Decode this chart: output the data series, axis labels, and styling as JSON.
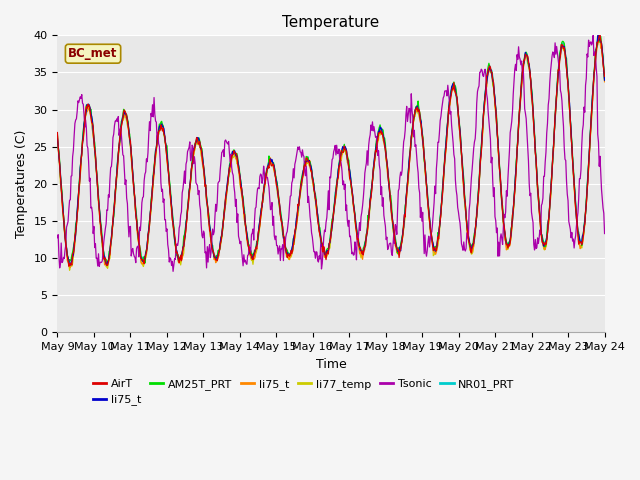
{
  "title": "Temperature",
  "ylabel": "Temperatures (C)",
  "xlabel": "Time",
  "annotation_text": "BC_met",
  "legend_entries": [
    {
      "label": "AirT",
      "color": "#dd0000"
    },
    {
      "label": "li75_t",
      "color": "#0000cc"
    },
    {
      "label": "AM25T_PRT",
      "color": "#00dd00"
    },
    {
      "label": "li75_t",
      "color": "#ff8800"
    },
    {
      "label": "li77_temp",
      "color": "#cccc00"
    },
    {
      "label": "Tsonic",
      "color": "#aa00aa"
    },
    {
      "label": "NR01_PRT",
      "color": "#00cccc"
    }
  ],
  "ylim": [
    0,
    40
  ],
  "xlim_days": 15,
  "start_day": 9,
  "n_days": 15,
  "background_color": "#e8e8e8",
  "fig_facecolor": "#f5f5f5",
  "title_fontsize": 11,
  "axis_fontsize": 9,
  "tick_fontsize": 8
}
